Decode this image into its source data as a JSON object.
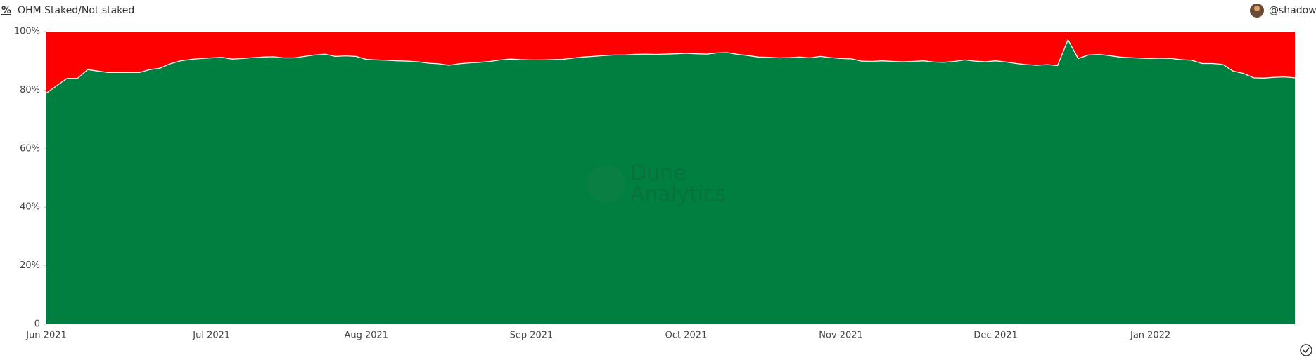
{
  "header": {
    "icon": "%",
    "title": "OHM Staked/Not staked",
    "user": "@shadow"
  },
  "watermark": {
    "line1": "Dune",
    "line2": "Analytics"
  },
  "chart_data": {
    "type": "stacked_area",
    "categories": [
      "Jun 2021",
      null,
      null,
      null,
      null,
      null,
      null,
      null,
      null,
      null,
      null,
      null,
      null,
      null,
      null,
      null,
      "Jul 2021",
      null,
      null,
      null,
      null,
      null,
      null,
      null,
      null,
      null,
      null,
      null,
      null,
      null,
      null,
      "Aug 2021",
      null,
      null,
      null,
      null,
      null,
      null,
      null,
      null,
      null,
      null,
      null,
      null,
      null,
      null,
      null,
      "Sep 2021",
      null,
      null,
      null,
      null,
      null,
      null,
      null,
      null,
      null,
      null,
      null,
      null,
      null,
      null,
      "Oct 2021",
      null,
      null,
      null,
      null,
      null,
      null,
      null,
      null,
      null,
      null,
      null,
      null,
      null,
      null,
      "Nov 2021",
      null,
      null,
      null,
      null,
      null,
      null,
      null,
      null,
      null,
      null,
      null,
      null,
      null,
      null,
      "Dec 2021",
      null,
      null,
      null,
      null,
      null,
      null,
      null,
      null,
      null,
      null,
      null,
      null,
      null,
      null,
      "Jan 2022",
      null,
      null,
      null,
      null,
      null,
      null,
      null,
      null,
      null,
      null,
      null,
      null,
      null,
      null
    ],
    "series": [
      {
        "color": "#008040",
        "values": [
          79,
          81.5,
          84,
          84,
          87,
          86.5,
          86,
          86,
          86,
          86,
          87,
          87.5,
          89,
          90,
          90.5,
          90.8,
          91,
          91.2,
          90.6,
          90.8,
          91.1,
          91.3,
          91.4,
          91,
          91,
          91.5,
          92,
          92.3,
          91.5,
          91.7,
          91.5,
          90.5,
          90.3,
          90.2,
          90,
          89.9,
          89.7,
          89.2,
          89,
          88.5,
          89,
          89.3,
          89.5,
          89.8,
          90.3,
          90.6,
          90.4,
          90.3,
          90.3,
          90.4,
          90.5,
          90.9,
          91.3,
          91.5,
          91.8,
          92,
          92,
          92.2,
          92.3,
          92.2,
          92.3,
          92.4,
          92.6,
          92.4,
          92.3,
          92.7,
          92.8,
          92.2,
          91.8,
          91.3,
          91.2,
          91,
          91.1,
          91.3,
          91,
          91.5,
          91.1,
          90.8,
          90.7,
          89.9,
          89.8,
          90,
          89.8,
          89.7,
          89.8,
          90,
          89.6,
          89.5,
          89.8,
          90.3,
          89.9,
          89.7,
          90,
          89.6,
          89.1,
          88.7,
          88.5,
          88.7,
          88.4,
          97.2,
          90.8,
          92,
          92.2,
          91.8,
          91.3,
          91.1,
          90.9,
          90.8,
          90.9,
          90.8,
          90.4,
          90.2,
          89.1,
          89.1,
          88.8,
          86.5,
          85.7,
          84.2,
          84.1,
          84.4,
          84.5,
          84.2
        ]
      },
      {
        "color": "#ff0000",
        "values": [
          21,
          18.5,
          16,
          16,
          13,
          13.5,
          14,
          14,
          14,
          14,
          13,
          12.5,
          11,
          10,
          9.5,
          9.2,
          9,
          8.8,
          9.4,
          9.2,
          8.9,
          8.7,
          8.6,
          9,
          9,
          8.5,
          8,
          7.7,
          8.5,
          8.3,
          8.5,
          9.5,
          9.7,
          9.8,
          10,
          10.1,
          10.3,
          10.8,
          11,
          11.5,
          11,
          10.7,
          10.5,
          10.2,
          9.7,
          9.4,
          9.6,
          9.7,
          9.7,
          9.6,
          9.5,
          9.1,
          8.7,
          8.5,
          8.2,
          8,
          8,
          7.8,
          7.7,
          7.8,
          7.7,
          7.6,
          7.4,
          7.6,
          7.7,
          7.3,
          7.2,
          7.8,
          8.2,
          8.7,
          8.8,
          9,
          8.9,
          8.7,
          9,
          8.5,
          8.9,
          9.2,
          9.3,
          10.1,
          10.2,
          10,
          10.2,
          10.3,
          10.2,
          10,
          10.4,
          10.5,
          10.2,
          9.7,
          10.1,
          10.3,
          10,
          10.4,
          10.9,
          11.3,
          11.5,
          11.3,
          11.6,
          2.8,
          9.2,
          8,
          7.8,
          8.2,
          8.7,
          8.9,
          9.1,
          9.2,
          9.1,
          9.2,
          9.6,
          9.8,
          10.9,
          10.9,
          11.2,
          13.5,
          14.3,
          15.8,
          15.9,
          15.6,
          15.5,
          15.8
        ]
      }
    ],
    "ylim": [
      0,
      100
    ],
    "yticks": [
      0,
      {
        "value": 20,
        "label": "20%"
      },
      {
        "value": 40,
        "label": "40%"
      },
      {
        "value": 60,
        "label": "60%"
      },
      {
        "value": 80,
        "label": "80%"
      },
      {
        "value": 100,
        "label": "100%"
      }
    ]
  }
}
